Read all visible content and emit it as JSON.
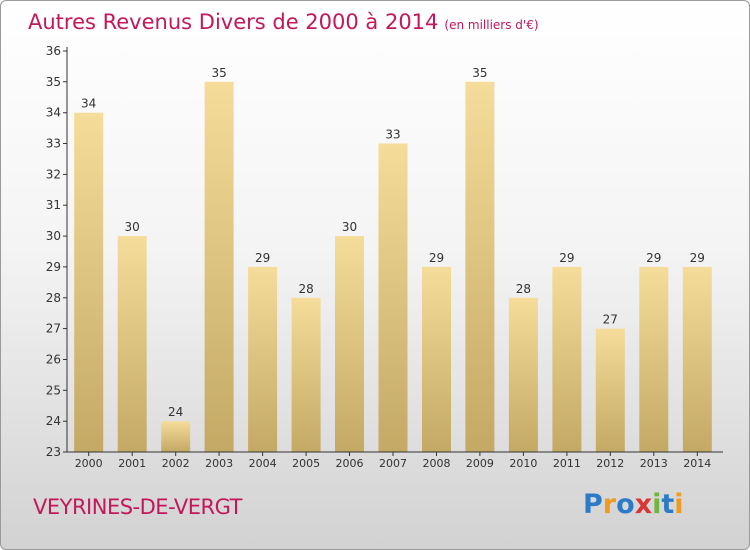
{
  "title": "Autres Revenus Divers de 2000 à 2014",
  "unit": "(en milliers d'€)",
  "location": "VEYRINES-DE-VERGT",
  "logo": [
    {
      "t": "P",
      "c": "#2c7bc9"
    },
    {
      "t": "r",
      "c": "#f19a1e"
    },
    {
      "t": "o",
      "c": "#2c7bc9"
    },
    {
      "t": "x",
      "c": "#d93636"
    },
    {
      "t": "i",
      "c": "#72b43e"
    },
    {
      "t": "t",
      "c": "#2c7bc9"
    },
    {
      "t": "i",
      "c": "#f19a1e"
    }
  ],
  "chart_data": {
    "type": "bar",
    "title": "Autres Revenus Divers de 2000 à 2014",
    "categories": [
      "2000",
      "2001",
      "2002",
      "2003",
      "2004",
      "2005",
      "2006",
      "2007",
      "2008",
      "2009",
      "2010",
      "2011",
      "2012",
      "2013",
      "2014"
    ],
    "values": [
      34,
      30,
      24,
      35,
      29,
      28,
      30,
      33,
      29,
      35,
      28,
      29,
      27,
      29,
      29
    ],
    "ylim": [
      23,
      36
    ],
    "yticks": [
      23,
      24,
      25,
      26,
      27,
      28,
      29,
      30,
      31,
      32,
      33,
      34,
      35,
      36
    ],
    "grid": false,
    "data_labels": true,
    "colors": {
      "bar_top": "#f5dc9a",
      "bar_bottom": "#c3a964",
      "axis": "#333333",
      "text": "#333333"
    }
  }
}
